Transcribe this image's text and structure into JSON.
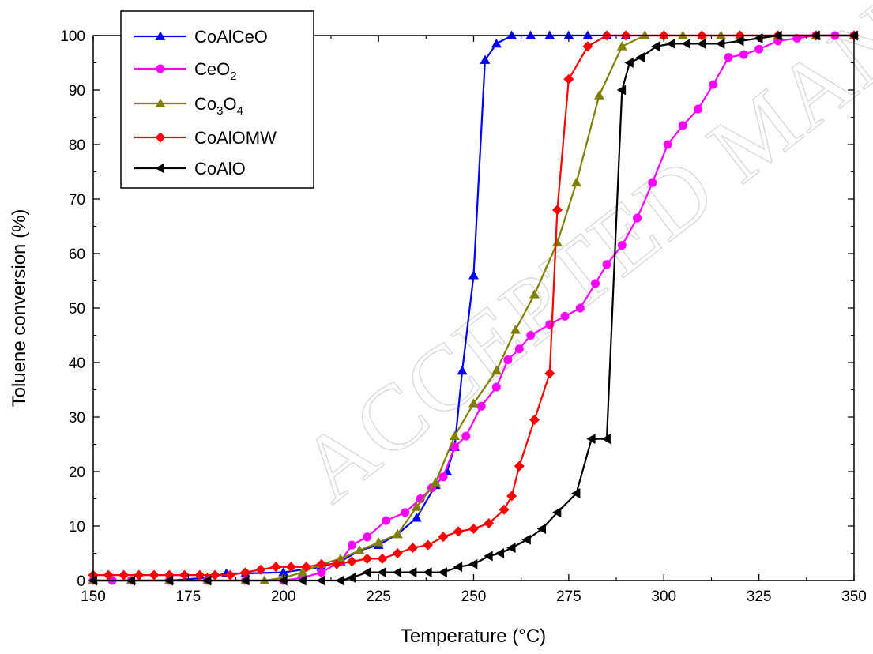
{
  "chart_data": {
    "type": "line",
    "xlabel": "Temperature (°C)",
    "ylabel": "Toluene conversion (%)",
    "xlim": [
      150,
      350
    ],
    "ylim": [
      0,
      100
    ],
    "xticks": [
      150,
      175,
      200,
      225,
      250,
      275,
      300,
      325,
      350
    ],
    "yticks": [
      0,
      10,
      20,
      30,
      40,
      50,
      60,
      70,
      80,
      90,
      100
    ],
    "grid": false,
    "legend_position": "top-left",
    "watermark": "ACCEPTED MANUSCRIPT",
    "series": [
      {
        "name": "CoAlCeO",
        "name_parts": [
          {
            "t": "CoAlCeO",
            "sub": false
          }
        ],
        "color": "#0000ff",
        "marker": "triangle-up",
        "x": [
          150,
          160,
          170,
          180,
          185,
          190,
          200,
          210,
          215,
          220,
          225,
          230,
          235,
          240,
          243,
          245,
          247,
          250,
          253,
          256,
          260,
          265,
          270,
          275,
          280,
          285,
          290,
          295,
          300,
          310,
          320,
          330,
          340,
          350
        ],
        "y": [
          0,
          0,
          0,
          0.5,
          1.3,
          1.3,
          1.5,
          2.5,
          3.5,
          5.5,
          6.5,
          8.5,
          11.5,
          17.5,
          20,
          24.5,
          38.5,
          56,
          95.5,
          98.5,
          100,
          100,
          100,
          100,
          100,
          100,
          100,
          100,
          100,
          100,
          100,
          100,
          100,
          100
        ]
      },
      {
        "name": "CeO2",
        "name_parts": [
          {
            "t": "CeO",
            "sub": false
          },
          {
            "t": "2",
            "sub": true
          }
        ],
        "color": "#ff00ff",
        "marker": "circle",
        "x": [
          150,
          155,
          160,
          170,
          180,
          190,
          200,
          205,
          210,
          215,
          218,
          222,
          227,
          232,
          236,
          239,
          242,
          245,
          248,
          252,
          256,
          259,
          262,
          265,
          270,
          274,
          278,
          282,
          285,
          289,
          293,
          297,
          301,
          305,
          309,
          313,
          317,
          321,
          325,
          330,
          335,
          340,
          345,
          350
        ],
        "y": [
          0,
          0,
          0,
          0,
          0,
          0,
          0,
          0.5,
          1.5,
          3.5,
          6.5,
          8,
          11,
          12.5,
          15,
          17,
          19,
          24.5,
          26.5,
          32,
          35.5,
          40.5,
          42.5,
          45,
          47,
          48.5,
          50,
          54.5,
          58,
          61.5,
          66.5,
          73,
          80,
          83.5,
          86.5,
          91,
          96,
          96.5,
          97.5,
          99,
          99.5,
          100,
          100,
          100
        ]
      },
      {
        "name": "Co3O4",
        "name_parts": [
          {
            "t": "Co",
            "sub": false
          },
          {
            "t": "3",
            "sub": true
          },
          {
            "t": "O",
            "sub": false
          },
          {
            "t": "4",
            "sub": true
          }
        ],
        "color": "#808000",
        "marker": "triangle-up",
        "x": [
          150,
          160,
          170,
          180,
          190,
          195,
          200,
          205,
          210,
          215,
          220,
          225,
          230,
          235,
          240,
          245,
          250,
          256,
          261,
          266,
          272,
          277,
          283,
          289,
          295,
          300,
          305,
          310,
          315,
          320,
          330,
          340,
          350
        ],
        "y": [
          0,
          0,
          0,
          0,
          0,
          0,
          0.5,
          1.5,
          3,
          4,
          5.5,
          7,
          8.5,
          13.5,
          18,
          26.5,
          32.5,
          38.5,
          46,
          52.5,
          62,
          73,
          89,
          98,
          100,
          100,
          100,
          100,
          100,
          100,
          100,
          100,
          100
        ]
      },
      {
        "name": "CoAlOMW",
        "name_parts": [
          {
            "t": "CoAlOMW",
            "sub": false
          }
        ],
        "color": "#ff0000",
        "marker": "diamond",
        "x": [
          150,
          154,
          158,
          162,
          166,
          170,
          174,
          178,
          182,
          186,
          190,
          194,
          198,
          202,
          206,
          210,
          214,
          218,
          222,
          226,
          230,
          234,
          238,
          242,
          246,
          250,
          254,
          258,
          260,
          262,
          266,
          270,
          272,
          275,
          280,
          285,
          290,
          300,
          310,
          320,
          330,
          340,
          350
        ],
        "y": [
          1,
          1,
          1,
          1,
          1,
          1,
          1,
          1,
          1,
          1,
          1.5,
          2,
          2.5,
          2.5,
          2.5,
          3,
          3,
          3.5,
          4,
          4,
          5,
          6,
          6.5,
          8,
          9,
          9.5,
          10.5,
          13,
          15.5,
          21,
          29.5,
          38,
          68,
          92,
          98,
          100,
          100,
          100,
          100,
          100,
          100,
          100,
          100
        ]
      },
      {
        "name": "CoAlO",
        "name_parts": [
          {
            "t": "CoAlO",
            "sub": false
          }
        ],
        "color": "#000000",
        "marker": "triangle-left",
        "x": [
          150,
          160,
          170,
          180,
          190,
          200,
          205,
          210,
          215,
          218,
          222,
          226,
          230,
          234,
          238,
          242,
          246,
          250,
          254,
          257,
          260,
          264,
          268,
          272,
          277,
          281,
          285,
          289,
          291,
          294,
          298,
          302,
          306,
          310,
          315,
          320,
          325,
          330,
          340,
          350
        ],
        "y": [
          0,
          0,
          0,
          0,
          0,
          0,
          0,
          0,
          0,
          0.5,
          1.5,
          1.5,
          1.5,
          1.5,
          1.5,
          1.5,
          2.5,
          3,
          4.5,
          5,
          6,
          7.5,
          9.5,
          12.5,
          16,
          26,
          26,
          90,
          95,
          96,
          98,
          98.5,
          98.5,
          98.5,
          98.5,
          99,
          99.5,
          100,
          100,
          100
        ]
      }
    ]
  }
}
